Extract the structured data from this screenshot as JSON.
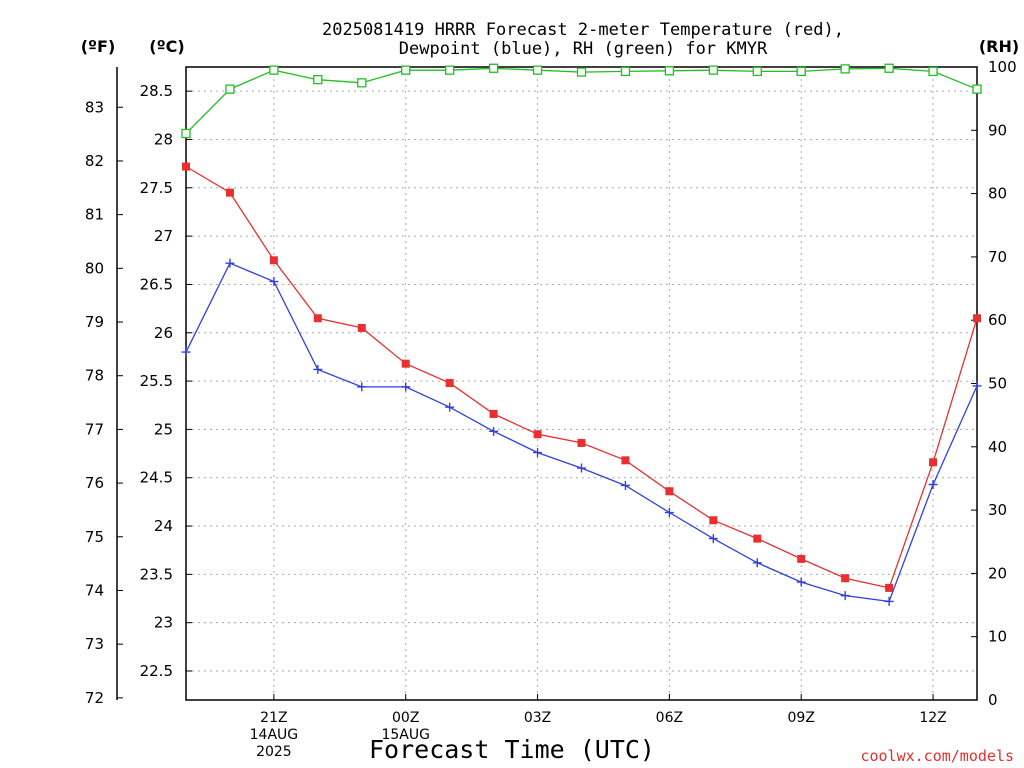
{
  "chart_data": {
    "type": "line",
    "title_line1": "2025081419 HRRR Forecast 2-meter Temperature (red),",
    "title_line2": "Dewpoint (blue), RH (green) for KMYR",
    "unit_f": "(ºF)",
    "unit_c": "(ºC)",
    "unit_rh": "(RH)",
    "xlabel": "Forecast Time (UTC)",
    "credit": "coolwx.com/models",
    "x_hours": [
      19,
      20,
      21,
      22,
      23,
      24,
      25,
      26,
      27,
      28,
      29,
      30,
      31,
      32,
      33,
      34,
      35,
      36,
      37
    ],
    "xlim": [
      19,
      37
    ],
    "x_ticks": [
      {
        "x": 21,
        "lines": [
          "21Z",
          "14AUG",
          "2025"
        ]
      },
      {
        "x": 24,
        "lines": [
          "00Z",
          "15AUG"
        ]
      },
      {
        "x": 27,
        "lines": [
          "03Z"
        ]
      },
      {
        "x": 30,
        "lines": [
          "06Z"
        ]
      },
      {
        "x": 33,
        "lines": [
          "09Z"
        ]
      },
      {
        "x": 36,
        "lines": [
          "12Z"
        ]
      }
    ],
    "celsius_axis": {
      "ylim": [
        22.2,
        28.75
      ],
      "ticks": [
        "22.5",
        "23",
        "23.5",
        "24",
        "24.5",
        "25",
        "25.5",
        "26",
        "26.5",
        "27",
        "27.5",
        "28",
        "28.5"
      ]
    },
    "fahrenheit_axis": {
      "ticks": [
        "72",
        "73",
        "74",
        "75",
        "76",
        "77",
        "78",
        "79",
        "80",
        "81",
        "82",
        "83"
      ]
    },
    "rh_axis": {
      "ylim": [
        0,
        100
      ],
      "ticks": [
        "0",
        "10",
        "20",
        "30",
        "40",
        "50",
        "60",
        "70",
        "80",
        "90",
        "100"
      ]
    },
    "grid": true,
    "series": [
      {
        "name": "Temperature",
        "color": "#e83030",
        "axis": "celsius",
        "marker": "filled-square",
        "values": [
          27.72,
          27.45,
          26.75,
          26.15,
          26.05,
          25.68,
          25.48,
          25.16,
          24.95,
          24.86,
          24.68,
          24.36,
          24.06,
          23.87,
          23.66,
          23.46,
          23.36,
          24.66,
          26.15
        ]
      },
      {
        "name": "Dewpoint",
        "color": "#3040e0",
        "axis": "celsius",
        "marker": "plus",
        "values": [
          25.8,
          26.72,
          26.53,
          25.62,
          25.44,
          25.44,
          25.23,
          24.98,
          24.76,
          24.6,
          24.42,
          24.14,
          23.87,
          23.62,
          23.42,
          23.28,
          23.22,
          24.43,
          25.45
        ]
      },
      {
        "name": "RH",
        "color": "#20c020",
        "axis": "rh",
        "marker": "open-square",
        "values": [
          89.5,
          96.5,
          99.5,
          98,
          97.5,
          99.5,
          99.5,
          99.8,
          99.5,
          99.2,
          99.3,
          99.4,
          99.5,
          99.3,
          99.3,
          99.7,
          99.8,
          99.3,
          96.5
        ]
      }
    ]
  }
}
